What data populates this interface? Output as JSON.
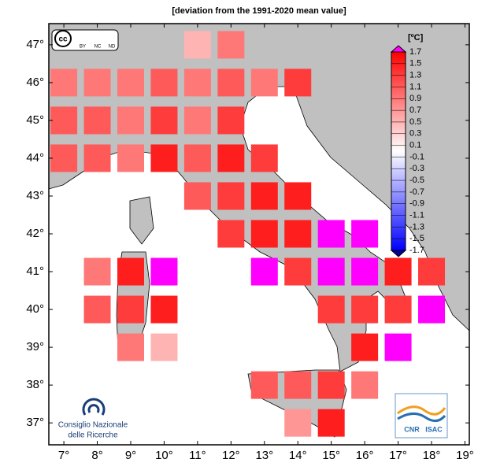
{
  "chart_data": {
    "type": "grid_map",
    "title": "[deviation from the 1991-2020 mean value]",
    "xlim": [
      6.55,
      19.13
    ],
    "ylim": [
      36.42,
      47.56
    ],
    "xticks": [
      {
        "value": 7,
        "label": "7°"
      },
      {
        "value": 8,
        "label": "8°"
      },
      {
        "value": 9,
        "label": "9°"
      },
      {
        "value": 10,
        "label": "10°"
      },
      {
        "value": 11,
        "label": "11°"
      },
      {
        "value": 12,
        "label": "12°"
      },
      {
        "value": 13,
        "label": "13°"
      },
      {
        "value": 14,
        "label": "14°"
      },
      {
        "value": 15,
        "label": "15°"
      },
      {
        "value": 16,
        "label": "16°"
      },
      {
        "value": 17,
        "label": "17°"
      },
      {
        "value": 18,
        "label": "18°"
      },
      {
        "value": 19,
        "label": "19°"
      }
    ],
    "yticks": [
      {
        "value": 37,
        "label": "37°"
      },
      {
        "value": 38,
        "label": "38°"
      },
      {
        "value": 39,
        "label": "39°"
      },
      {
        "value": 40,
        "label": "40°"
      },
      {
        "value": 41,
        "label": "41°"
      },
      {
        "value": 42,
        "label": "42°"
      },
      {
        "value": 43,
        "label": "43°"
      },
      {
        "value": 44,
        "label": "44°"
      },
      {
        "value": 45,
        "label": "45°"
      },
      {
        "value": 46,
        "label": "46°"
      },
      {
        "value": 47,
        "label": "47°"
      }
    ],
    "lon": [
      11,
      12,
      7,
      8,
      9,
      10,
      11,
      12,
      13,
      14,
      7,
      8,
      9,
      10,
      11,
      12,
      7,
      8,
      9,
      10,
      11,
      12,
      13,
      11,
      12,
      13,
      14,
      12,
      13,
      14,
      15,
      16,
      8,
      9,
      10,
      13,
      14,
      15,
      16,
      17,
      18,
      8,
      9,
      10,
      15,
      16,
      17,
      18,
      9,
      10,
      16,
      17,
      13,
      14,
      15,
      16,
      14,
      15
    ],
    "lat": [
      47,
      47,
      46,
      46,
      46,
      46,
      46,
      46,
      46,
      46,
      45,
      45,
      45,
      45,
      45,
      45,
      44,
      44,
      44,
      44,
      44,
      44,
      44,
      43,
      43,
      43,
      43,
      42,
      42,
      42,
      42,
      42,
      41,
      41,
      41,
      41,
      41,
      41,
      41,
      41,
      41,
      40,
      40,
      40,
      40,
      40,
      40,
      40,
      39,
      39,
      39,
      39,
      38,
      38,
      38,
      38,
      37,
      37
    ],
    "values": [
      0.5,
      0.9,
      0.9,
      0.9,
      0.9,
      1.1,
      0.9,
      1.1,
      0.9,
      1.3,
      1.1,
      1.1,
      0.9,
      1.3,
      0.9,
      1.3,
      1.1,
      1.1,
      0.9,
      1.5,
      1.1,
      1.5,
      1.3,
      1.1,
      1.3,
      1.5,
      1.5,
      1.3,
      1.5,
      1.5,
      1.8,
      1.8,
      0.9,
      1.5,
      1.8,
      1.8,
      1.3,
      1.8,
      1.8,
      1.5,
      1.3,
      1.1,
      1.3,
      1.5,
      1.3,
      1.3,
      1.3,
      1.8,
      0.9,
      0.5,
      1.5,
      1.8,
      1.1,
      1.1,
      1.3,
      0.9,
      0.7,
      1.5
    ],
    "colorbar": {
      "label": "[ºC]",
      "lim": [
        -1.7,
        1.7
      ],
      "ticks": [
        1.7,
        1.5,
        1.3,
        1.1,
        0.9,
        0.7,
        0.5,
        0.3,
        0.1,
        -0.1,
        -0.3,
        -0.5,
        -0.7,
        -0.9,
        -1.1,
        -1.3,
        -1.5,
        -1.7
      ],
      "colormap": [
        "#0000ff",
        "#ffffff",
        "#ff0000"
      ],
      "over_color": "#ff00ff",
      "under_color": "#000099"
    },
    "land_color": "#c0c0c0",
    "logos": {
      "cc": "cc",
      "cc_terms": [
        "BY",
        "NC",
        "ND"
      ],
      "cnr_name": [
        "Consiglio Nazionale",
        "delle Ricerche"
      ],
      "isac": [
        "CNR",
        "ISAC"
      ]
    }
  }
}
